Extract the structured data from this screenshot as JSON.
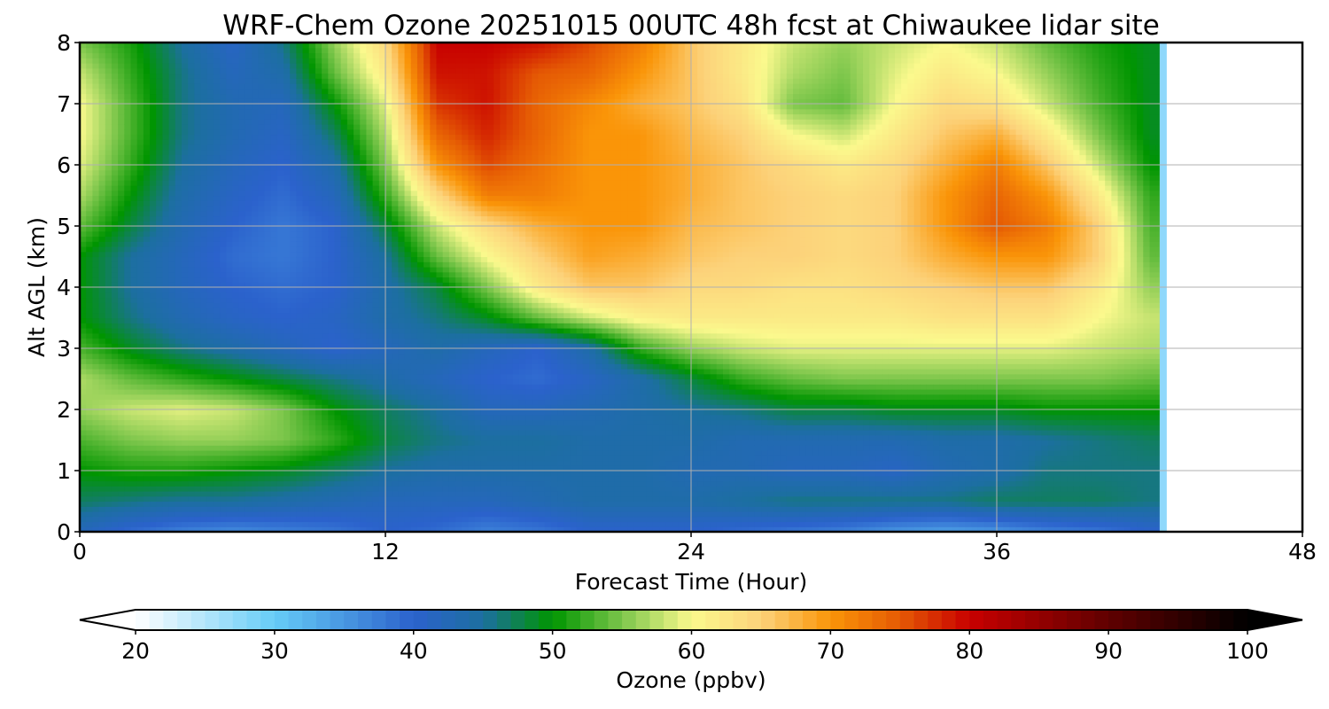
{
  "chart_data": {
    "type": "heatmap",
    "title": "WRF-Chem Ozone  20251015 00UTC 48h fcst at Chiwaukee lidar site",
    "xlabel": "Forecast Time (Hour)",
    "ylabel": "Alt AGL (km)",
    "xlim": [
      0,
      48
    ],
    "ylim": [
      0,
      8
    ],
    "xticks": [
      "0",
      "12",
      "24",
      "36",
      "48"
    ],
    "yticks": [
      "0",
      "1",
      "2",
      "3",
      "4",
      "5",
      "6",
      "7",
      "8"
    ],
    "grid": true,
    "x": [
      0,
      2,
      4,
      6,
      8,
      10,
      12,
      14,
      16,
      18,
      20,
      22,
      24,
      26,
      28,
      30,
      32,
      34,
      36,
      38,
      40,
      42
    ],
    "y": [
      0,
      0.5,
      1,
      1.5,
      2,
      2.5,
      3,
      3.5,
      4,
      4.5,
      5,
      5.5,
      6,
      6.5,
      7,
      7.5,
      8
    ],
    "z": [
      [
        42,
        39,
        37,
        36,
        37,
        38,
        40,
        39,
        37,
        38,
        40,
        40,
        40,
        39,
        38,
        37,
        35,
        34,
        35,
        37,
        38,
        40
      ],
      [
        47,
        46,
        45,
        45,
        44,
        43,
        42,
        42,
        42,
        43,
        44,
        44,
        44,
        45,
        46,
        46,
        46,
        46,
        47,
        47,
        47,
        46
      ],
      [
        50,
        51,
        51,
        50,
        49,
        47,
        45,
        44,
        44,
        44,
        44,
        44,
        43,
        43,
        42,
        42,
        41,
        43,
        44,
        46,
        46,
        46
      ],
      [
        53,
        55,
        56,
        56,
        55,
        52,
        48,
        46,
        45,
        45,
        44,
        44,
        44,
        43,
        43,
        43,
        43,
        44,
        44,
        45,
        46,
        47
      ],
      [
        56,
        58,
        59,
        58,
        55,
        50,
        47,
        45,
        42,
        42,
        43,
        44,
        45,
        46,
        48,
        48,
        49,
        49,
        49,
        50,
        50,
        50
      ],
      [
        57,
        54,
        52,
        50,
        48,
        46,
        44,
        42,
        40,
        39,
        41,
        44,
        48,
        52,
        54,
        55,
        55,
        55,
        55,
        55,
        55,
        54
      ],
      [
        53,
        49,
        46,
        44,
        42,
        40,
        42,
        44,
        42,
        40,
        44,
        52,
        56,
        58,
        59,
        59,
        59,
        59,
        59,
        59,
        58,
        57
      ],
      [
        50,
        46,
        43,
        41,
        40,
        41,
        44,
        46,
        49,
        54,
        58,
        61,
        62,
        62,
        62,
        62,
        62,
        63,
        63,
        63,
        60,
        58
      ],
      [
        50,
        45,
        42,
        40,
        39,
        40,
        44,
        48,
        55,
        62,
        66,
        66,
        64,
        64,
        63,
        63,
        64,
        65,
        66,
        66,
        62,
        56
      ],
      [
        50,
        45,
        42,
        39,
        38,
        40,
        45,
        54,
        60,
        65,
        69,
        68,
        66,
        65,
        65,
        64,
        65,
        68,
        70,
        70,
        65,
        54
      ],
      [
        54,
        48,
        43,
        40,
        38,
        40,
        48,
        58,
        64,
        68,
        70,
        70,
        67,
        66,
        65,
        64,
        65,
        70,
        75,
        72,
        65,
        53
      ],
      [
        57,
        50,
        44,
        41,
        39,
        42,
        52,
        64,
        72,
        72,
        70,
        70,
        68,
        66,
        65,
        64,
        65,
        70,
        74,
        70,
        62,
        52
      ],
      [
        59,
        52,
        45,
        42,
        40,
        44,
        55,
        70,
        76,
        73,
        70,
        70,
        68,
        66,
        64,
        62,
        64,
        68,
        72,
        66,
        58,
        50
      ],
      [
        60,
        53,
        46,
        43,
        41,
        47,
        57,
        74,
        78,
        74,
        70,
        70,
        67,
        65,
        60,
        58,
        62,
        66,
        68,
        62,
        55,
        49
      ],
      [
        60,
        53,
        46,
        43,
        42,
        50,
        59,
        77,
        79,
        74,
        71,
        68,
        66,
        63,
        55,
        54,
        60,
        64,
        63,
        58,
        53,
        49
      ],
      [
        58,
        52,
        46,
        42,
        44,
        54,
        62,
        79,
        79,
        75,
        74,
        70,
        66,
        62,
        57,
        55,
        59,
        62,
        60,
        56,
        52,
        49
      ],
      [
        55,
        51,
        45,
        41,
        46,
        56,
        64,
        80,
        80,
        79,
        76,
        72,
        66,
        62,
        58,
        56,
        58,
        60,
        58,
        54,
        51,
        49
      ]
    ],
    "data_end_hour": 42.5,
    "colorbar": {
      "label": "Ozone  (ppbv)",
      "min": 20,
      "max": 100,
      "tick_labels": [
        "20",
        "30",
        "40",
        "50",
        "60",
        "70",
        "80",
        "90",
        "100"
      ],
      "extend": "both",
      "stops": [
        {
          "v": 20,
          "c": "#ffffff"
        },
        {
          "v": 30,
          "c": "#66ccf7"
        },
        {
          "v": 40,
          "c": "#2b62cc"
        },
        {
          "v": 45,
          "c": "#1c6fa0"
        },
        {
          "v": 50,
          "c": "#009500"
        },
        {
          "v": 55,
          "c": "#7cc64b"
        },
        {
          "v": 60,
          "c": "#fbf98d"
        },
        {
          "v": 65,
          "c": "#fcd27a"
        },
        {
          "v": 70,
          "c": "#fa9508"
        },
        {
          "v": 75,
          "c": "#e55a04"
        },
        {
          "v": 80,
          "c": "#c80000"
        },
        {
          "v": 90,
          "c": "#600000"
        },
        {
          "v": 100,
          "c": "#000000"
        }
      ]
    }
  }
}
